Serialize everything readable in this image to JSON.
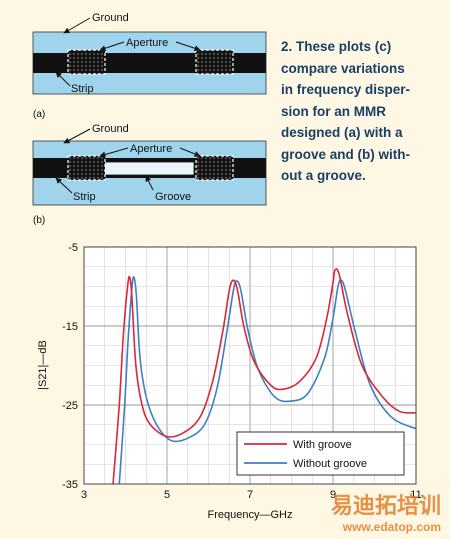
{
  "diagram_a": {
    "panel_label": "(a)",
    "label_ground": "Ground",
    "label_aperture": "Aperture",
    "label_strip": "Strip"
  },
  "diagram_b": {
    "panel_label": "(b)",
    "label_ground": "Ground",
    "label_aperture": "Aperture",
    "label_strip": "Strip",
    "label_groove": "Groove"
  },
  "caption_lines": [
    "2. These plots (c)",
    "compare variations",
    "in frequency disper-",
    "sion for an MMR",
    "designed (a) with a",
    "groove and (b) with-",
    "out a groove."
  ],
  "watermark": {
    "cn_text": "易迪拓培训",
    "url_text": "www.edatop.com"
  },
  "colors": {
    "background": "#fdf7e3",
    "substrate": "#9fd4ec",
    "caption_text": "#1a3f66",
    "with_groove": "#d8283a",
    "without_groove": "#3f7fc4"
  },
  "chart_data": {
    "type": "line",
    "title": "",
    "xlabel": "Frequency—GHz",
    "ylabel": "|S21|—dB",
    "xlim": [
      3,
      11
    ],
    "ylim": [
      -35,
      -5
    ],
    "xticks": [
      3,
      5,
      7,
      9,
      11
    ],
    "yticks": [
      -35,
      -25,
      -15,
      -5
    ],
    "grid": true,
    "legend_position": "bottom-right",
    "series": [
      {
        "name": "With groove",
        "color": "#d8283a",
        "points": [
          [
            3.7,
            -35
          ],
          [
            3.85,
            -25
          ],
          [
            3.95,
            -16
          ],
          [
            4.05,
            -10
          ],
          [
            4.1,
            -8.8
          ],
          [
            4.15,
            -11
          ],
          [
            4.25,
            -20
          ],
          [
            4.4,
            -25
          ],
          [
            4.6,
            -27.5
          ],
          [
            5.0,
            -29
          ],
          [
            5.4,
            -28.5
          ],
          [
            5.8,
            -26.5
          ],
          [
            6.1,
            -22
          ],
          [
            6.35,
            -15.5
          ],
          [
            6.5,
            -10.5
          ],
          [
            6.6,
            -9.2
          ],
          [
            6.7,
            -10.5
          ],
          [
            6.85,
            -15
          ],
          [
            7.1,
            -19.5
          ],
          [
            7.5,
            -22.5
          ],
          [
            7.8,
            -23
          ],
          [
            8.2,
            -22
          ],
          [
            8.6,
            -19
          ],
          [
            8.85,
            -14
          ],
          [
            9.0,
            -9.5
          ],
          [
            9.05,
            -7.9
          ],
          [
            9.15,
            -8.5
          ],
          [
            9.35,
            -13.5
          ],
          [
            9.7,
            -20
          ],
          [
            10.2,
            -24
          ],
          [
            10.6,
            -25.8
          ],
          [
            11.0,
            -26
          ]
        ]
      },
      {
        "name": "Without groove",
        "color": "#3f7fc4",
        "points": [
          [
            3.85,
            -35
          ],
          [
            3.98,
            -25
          ],
          [
            4.06,
            -17
          ],
          [
            4.15,
            -10.5
          ],
          [
            4.2,
            -8.8
          ],
          [
            4.26,
            -11
          ],
          [
            4.35,
            -19
          ],
          [
            4.5,
            -24
          ],
          [
            4.75,
            -27.5
          ],
          [
            5.1,
            -29.5
          ],
          [
            5.5,
            -29.2
          ],
          [
            5.9,
            -27.5
          ],
          [
            6.2,
            -23
          ],
          [
            6.45,
            -15.5
          ],
          [
            6.6,
            -10.5
          ],
          [
            6.68,
            -9.3
          ],
          [
            6.78,
            -10.5
          ],
          [
            6.95,
            -15.5
          ],
          [
            7.2,
            -20.5
          ],
          [
            7.6,
            -24
          ],
          [
            8.0,
            -24.5
          ],
          [
            8.4,
            -23.5
          ],
          [
            8.8,
            -19
          ],
          [
            9.0,
            -14
          ],
          [
            9.12,
            -10
          ],
          [
            9.2,
            -9.2
          ],
          [
            9.3,
            -10.5
          ],
          [
            9.55,
            -16
          ],
          [
            9.9,
            -22.5
          ],
          [
            10.4,
            -26.5
          ],
          [
            11.0,
            -28
          ]
        ]
      }
    ]
  }
}
